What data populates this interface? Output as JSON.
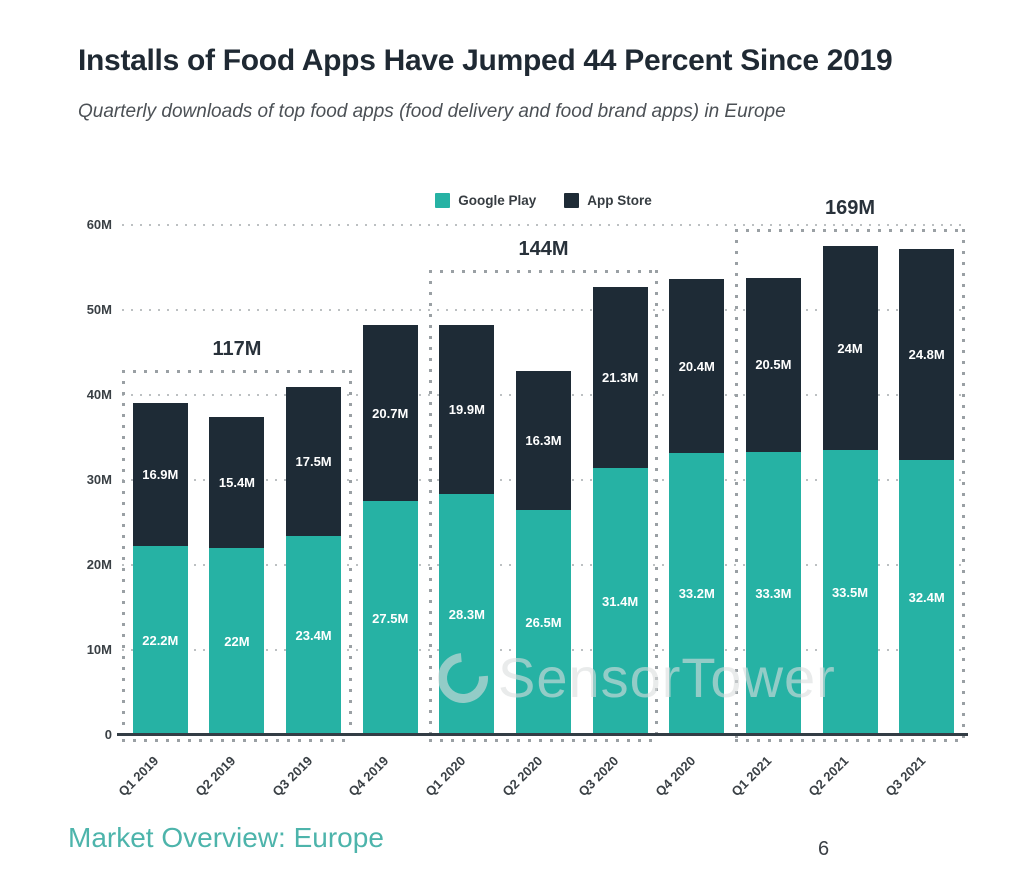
{
  "page": {
    "title": "Installs of Food Apps Have Jumped 44 Percent Since 2019",
    "subtitle": "Quarterly downloads of top food apps (food delivery and food brand apps) in Europe",
    "watermark": "SensorTower",
    "footer_left": "Market Overview: Europe",
    "page_number": "6"
  },
  "colors": {
    "google_play": "#26b2a4",
    "app_store": "#1e2b36",
    "accent_teal": "#4db4ab",
    "title_text": "#1f2933",
    "subtitle_text": "#4b5055",
    "axis_text": "#3a4045",
    "grid_dot": "#bcc0c2",
    "box_dot": "#9aa0a4",
    "bar_label": "#ffffff"
  },
  "chart_data": {
    "type": "bar",
    "stacked": true,
    "title": "Installs of Food Apps Have Jumped 44 Percent Since 2019",
    "subtitle": "Quarterly downloads of top food apps (food delivery and food brand apps) in Europe",
    "categories": [
      "Q1 2019",
      "Q2 2019",
      "Q3 2019",
      "Q4 2019",
      "Q1 2020",
      "Q2 2020",
      "Q3 2020",
      "Q4 2020",
      "Q1 2021",
      "Q2 2021",
      "Q3 2021"
    ],
    "series": [
      {
        "name": "Google Play",
        "color": "#26b2a4",
        "values": [
          22.2,
          22,
          23.4,
          27.5,
          28.3,
          26.5,
          31.4,
          33.2,
          33.3,
          33.5,
          32.4
        ],
        "labels": [
          "22.2M",
          "22M",
          "23.4M",
          "27.5M",
          "28.3M",
          "26.5M",
          "31.4M",
          "33.2M",
          "33.3M",
          "33.5M",
          "32.4M"
        ]
      },
      {
        "name": "App Store",
        "color": "#1e2b36",
        "values": [
          16.9,
          15.4,
          17.5,
          20.7,
          19.9,
          16.3,
          21.3,
          20.4,
          20.5,
          24,
          24.8
        ],
        "labels": [
          "16.9M",
          "15.4M",
          "17.5M",
          "20.7M",
          "19.9M",
          "16.3M",
          "21.3M",
          "20.4M",
          "20.5M",
          "24M",
          "24.8M"
        ]
      }
    ],
    "ylim": [
      0,
      60
    ],
    "ytick_values": [
      0,
      10,
      20,
      30,
      40,
      50,
      60
    ],
    "ytick_labels": [
      "0",
      "10M",
      "20M",
      "30M",
      "40M",
      "50M",
      "60M"
    ],
    "grid": "dotted horizontal",
    "legend_position": "top center",
    "legend": [
      "Google Play",
      "App Store"
    ],
    "annotations": [
      {
        "label": "117M",
        "total": 117,
        "from_index": 0,
        "to_index": 2
      },
      {
        "label": "144M",
        "total": 144,
        "from_index": 4,
        "to_index": 6
      },
      {
        "label": "169M",
        "total": 169,
        "from_index": 8,
        "to_index": 10
      }
    ]
  }
}
